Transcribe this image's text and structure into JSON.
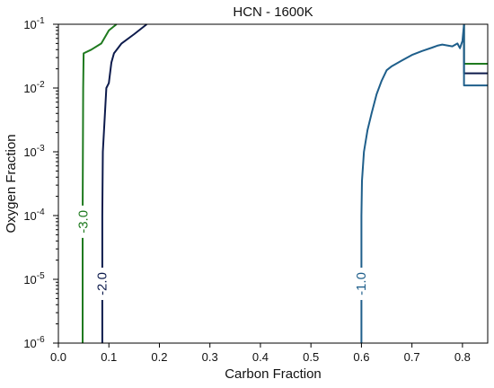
{
  "chart_data": {
    "type": "line",
    "title": "HCN - 1600K",
    "xlabel": "Carbon Fraction",
    "ylabel": "Oxygen Fraction",
    "xlim": [
      0.0,
      0.85
    ],
    "ylim": [
      1e-06,
      0.1
    ],
    "yscale": "log",
    "grid": false,
    "x_ticks": [
      0.0,
      0.1,
      0.2,
      0.3,
      0.4,
      0.5,
      0.6,
      0.7,
      0.8
    ],
    "x_tick_labels": [
      "0.0",
      "0.1",
      "0.2",
      "0.3",
      "0.4",
      "0.5",
      "0.6",
      "0.7",
      "0.8"
    ],
    "y_ticks": [
      1e-06,
      1e-05,
      0.0001,
      0.001,
      0.01,
      0.1
    ],
    "y_tick_labels": [
      {
        "base": "10",
        "exp": "-6"
      },
      {
        "base": "10",
        "exp": "-5"
      },
      {
        "base": "10",
        "exp": "-4"
      },
      {
        "base": "10",
        "exp": "-3"
      },
      {
        "base": "10",
        "exp": "-2"
      },
      {
        "base": "10",
        "exp": "-1"
      }
    ],
    "series": [
      {
        "label": "-3.0",
        "color": "#1f7a1f",
        "label_at": {
          "x": 0.05,
          "y": 8e-05
        },
        "segments": [
          {
            "x": [
              0.048,
              0.048,
              0.049,
              0.05,
              0.065,
              0.085,
              0.1,
              0.115
            ],
            "y": [
              1e-06,
              0.0001,
              0.01,
              0.035,
              0.04,
              0.05,
              0.08,
              0.1
            ]
          },
          {
            "x": [
              0.803,
              0.803,
              0.81,
              0.85
            ],
            "y": [
              0.1,
              0.024,
              0.024,
              0.024
            ]
          }
        ]
      },
      {
        "label": "-2.0",
        "color": "#0d1b4c",
        "label_at": {
          "x": 0.087,
          "y": 8.5e-06
        },
        "segments": [
          {
            "x": [
              0.087,
              0.087,
              0.088,
              0.095,
              0.1,
              0.105,
              0.11,
              0.125,
              0.15,
              0.175
            ],
            "y": [
              1e-06,
              0.0001,
              0.001,
              0.01,
              0.012,
              0.025,
              0.035,
              0.05,
              0.07,
              0.1
            ]
          },
          {
            "x": [
              0.803,
              0.803,
              0.81,
              0.85
            ],
            "y": [
              0.1,
              0.017,
              0.017,
              0.017
            ]
          }
        ]
      },
      {
        "label": "-1.0",
        "color": "#1f5f8b",
        "label_at": {
          "x": 0.6,
          "y": 8.5e-06
        },
        "segments": [
          {
            "x": [
              0.6,
              0.6,
              0.601,
              0.605,
              0.612,
              0.62,
              0.63,
              0.64,
              0.65,
              0.66,
              0.68,
              0.7,
              0.72,
              0.74,
              0.75,
              0.76,
              0.78,
              0.79,
              0.795,
              0.8,
              0.803
            ],
            "y": [
              1e-06,
              0.0001,
              0.00035,
              0.001,
              0.0022,
              0.004,
              0.008,
              0.013,
              0.019,
              0.022,
              0.027,
              0.033,
              0.038,
              0.043,
              0.046,
              0.048,
              0.045,
              0.05,
              0.042,
              0.055,
              0.1
            ]
          },
          {
            "x": [
              0.803,
              0.803,
              0.81,
              0.85
            ],
            "y": [
              0.1,
              0.011,
              0.011,
              0.011
            ]
          }
        ]
      }
    ]
  }
}
